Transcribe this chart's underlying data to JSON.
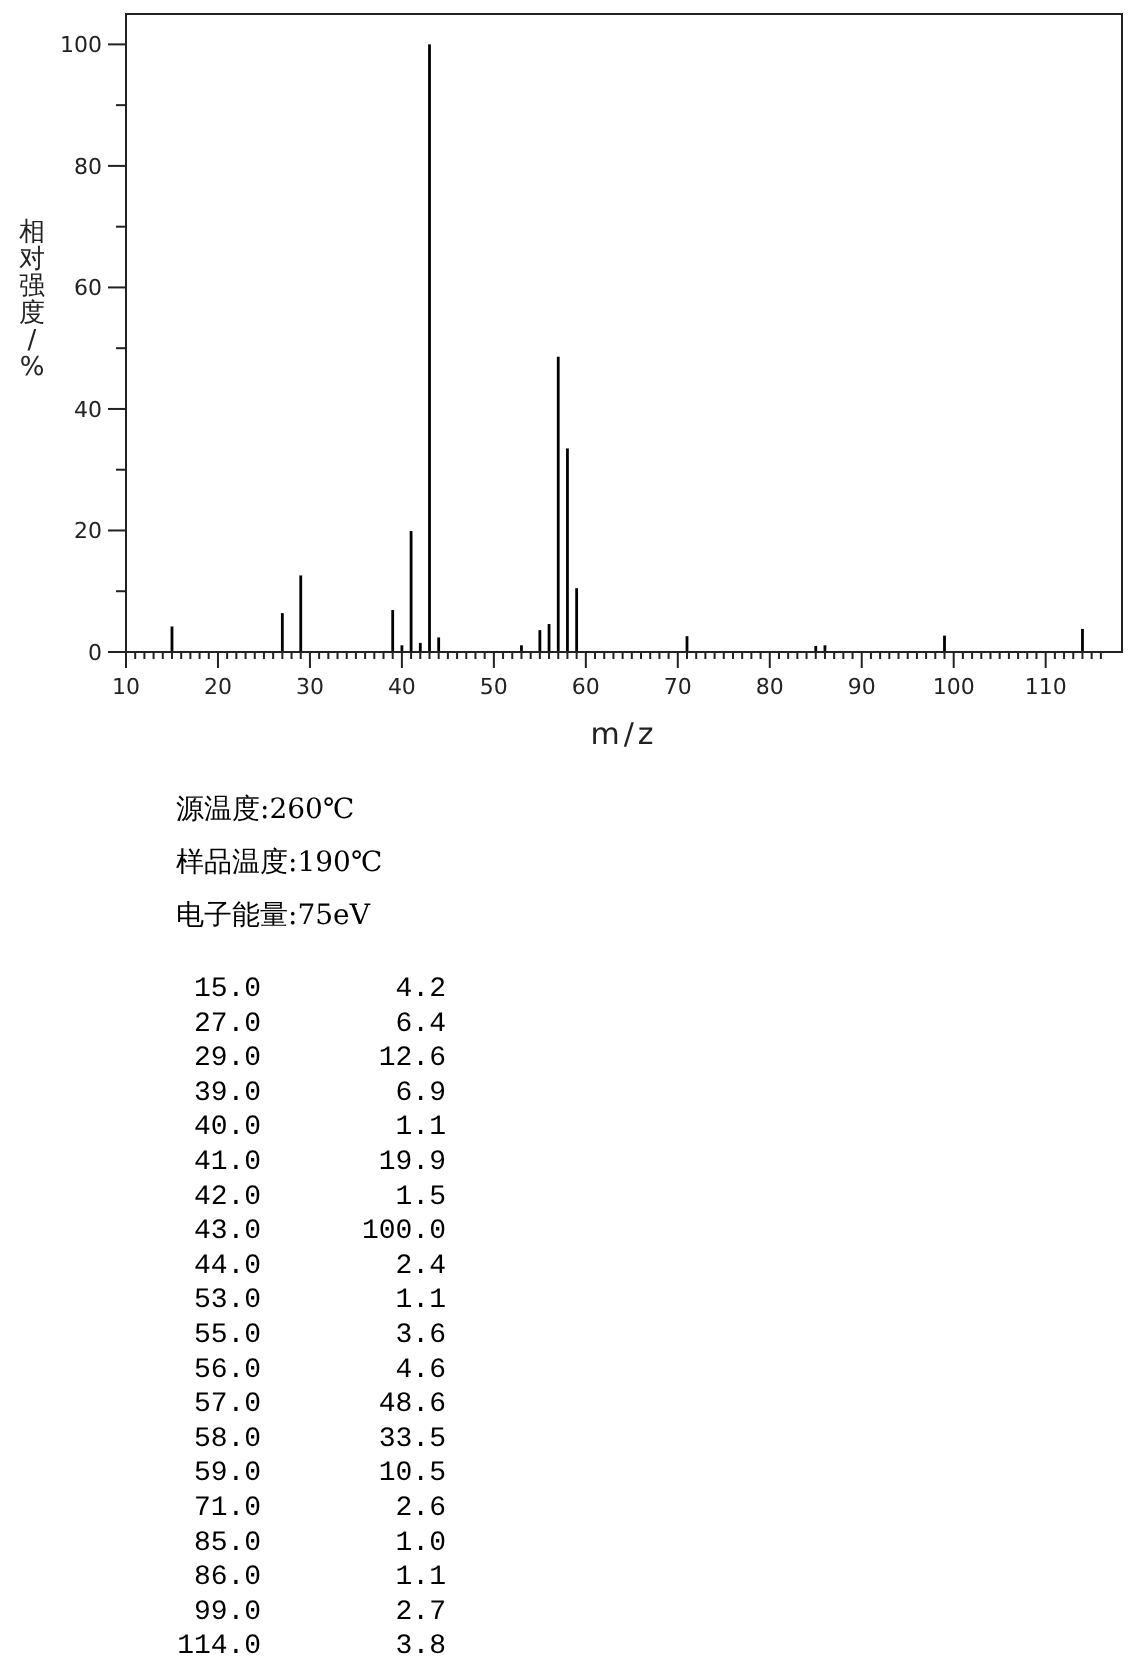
{
  "chart_data": [
    {
      "type": "bar",
      "xlabel": "m/z",
      "ylabel": "相对强度/%",
      "annotations": [
        "源温度:260℃",
        "样品温度:190℃",
        "电子能量:75eV"
      ],
      "x": [
        15,
        27,
        29,
        39,
        40,
        41,
        42,
        43,
        44,
        53,
        55,
        56,
        57,
        58,
        59,
        71,
        85,
        86,
        99,
        114
      ],
      "values": [
        4.2,
        6.4,
        12.6,
        6.9,
        1.1,
        19.9,
        1.5,
        100.0,
        2.4,
        1.1,
        3.6,
        4.6,
        48.6,
        33.5,
        10.5,
        2.6,
        1.0,
        1.1,
        2.7,
        3.8
      ],
      "color": "#000000",
      "xlim": [
        10,
        118.3
      ],
      "ylim": [
        0,
        105
      ],
      "xticks": [
        10,
        {
          "value": 11,
          "label": null
        },
        {
          "value": 12,
          "label": null
        },
        {
          "value": 13,
          "label": null
        },
        {
          "value": 14,
          "label": null
        },
        {
          "value": 15,
          "label": null
        },
        {
          "value": 16,
          "label": null
        },
        {
          "value": 17,
          "label": null
        },
        {
          "value": 18,
          "label": null
        },
        {
          "value": 19,
          "label": null
        },
        20,
        {
          "value": 21,
          "label": null
        },
        {
          "value": 22,
          "label": null
        },
        {
          "value": 23,
          "label": null
        },
        {
          "value": 24,
          "label": null
        },
        {
          "value": 25,
          "label": null
        },
        {
          "value": 26,
          "label": null
        },
        {
          "value": 27,
          "label": null
        },
        {
          "value": 28,
          "label": null
        },
        {
          "value": 29,
          "label": null
        },
        30,
        {
          "value": 31,
          "label": null
        },
        {
          "value": 32,
          "label": null
        },
        {
          "value": 33,
          "label": null
        },
        {
          "value": 34,
          "label": null
        },
        {
          "value": 35,
          "label": null
        },
        {
          "value": 36,
          "label": null
        },
        {
          "value": 37,
          "label": null
        },
        {
          "value": 38,
          "label": null
        },
        {
          "value": 39,
          "label": null
        },
        40,
        {
          "value": 41,
          "label": null
        },
        {
          "value": 42,
          "label": null
        },
        {
          "value": 43,
          "label": null
        },
        {
          "value": 44,
          "label": null
        },
        {
          "value": 45,
          "label": null
        },
        {
          "value": 46,
          "label": null
        },
        {
          "value": 47,
          "label": null
        },
        {
          "value": 48,
          "label": null
        },
        {
          "value": 49,
          "label": null
        },
        50,
        {
          "value": 51,
          "label": null
        },
        {
          "value": 52,
          "label": null
        },
        {
          "value": 53,
          "label": null
        },
        {
          "value": 54,
          "label": null
        },
        {
          "value": 55,
          "label": null
        },
        {
          "value": 56,
          "label": null
        },
        {
          "value": 57,
          "label": null
        },
        {
          "value": 58,
          "label": null
        },
        {
          "value": 59,
          "label": null
        },
        60,
        {
          "value": 61,
          "label": null
        },
        {
          "value": 62,
          "label": null
        },
        {
          "value": 63,
          "label": null
        },
        {
          "value": 64,
          "label": null
        },
        {
          "value": 65,
          "label": null
        },
        {
          "value": 66,
          "label": null
        },
        {
          "value": 67,
          "label": null
        },
        {
          "value": 68,
          "label": null
        },
        {
          "value": 69,
          "label": null
        },
        70,
        {
          "value": 71,
          "label": null
        },
        {
          "value": 72,
          "label": null
        },
        {
          "value": 73,
          "label": null
        },
        {
          "value": 74,
          "label": null
        },
        {
          "value": 75,
          "label": null
        },
        {
          "value": 76,
          "label": null
        },
        {
          "value": 77,
          "label": null
        },
        {
          "value": 78,
          "label": null
        },
        {
          "value": 79,
          "label": null
        },
        80,
        {
          "value": 81,
          "label": null
        },
        {
          "value": 82,
          "label": null
        },
        {
          "value": 83,
          "label": null
        },
        {
          "value": 84,
          "label": null
        },
        {
          "value": 85,
          "label": null
        },
        {
          "value": 86,
          "label": null
        },
        {
          "value": 87,
          "label": null
        },
        {
          "value": 88,
          "label": null
        },
        {
          "value": 89,
          "label": null
        },
        90,
        {
          "value": 91,
          "label": null
        },
        {
          "value": 92,
          "label": null
        },
        {
          "value": 93,
          "label": null
        },
        {
          "value": 94,
          "label": null
        },
        {
          "value": 95,
          "label": null
        },
        {
          "value": 96,
          "label": null
        },
        {
          "value": 97,
          "label": null
        },
        {
          "value": 98,
          "label": null
        },
        {
          "value": 99,
          "label": null
        },
        100,
        {
          "value": 101,
          "label": null
        },
        {
          "value": 102,
          "label": null
        },
        {
          "value": 103,
          "label": null
        },
        {
          "value": 104,
          "label": null
        },
        {
          "value": 105,
          "label": null
        },
        {
          "value": 106,
          "label": null
        },
        {
          "value": 107,
          "label": null
        },
        {
          "value": 108,
          "label": null
        },
        {
          "value": 109,
          "label": null
        },
        110,
        {
          "value": 111,
          "label": null
        },
        {
          "value": 112,
          "label": null
        },
        {
          "value": 113,
          "label": null
        },
        {
          "value": 114,
          "label": null
        },
        {
          "value": 115,
          "label": null
        },
        {
          "value": 116,
          "label": null
        }
      ],
      "yticks": [
        0,
        {
          "value": 10,
          "label": null
        },
        20,
        {
          "value": 30,
          "label": null
        },
        40,
        {
          "value": 50,
          "label": null
        },
        60,
        {
          "value": 70,
          "label": null
        },
        80,
        {
          "value": 90,
          "label": null
        },
        100
      ]
    },
    {
      "type": "other",
      "annotations": [
        "15.0        4.2",
        "27.0        6.4",
        "29.0       12.6",
        "39.0        6.9",
        "40.0        1.1",
        "41.0       19.9",
        "42.0        1.5",
        "43.0      100.0",
        "44.0        2.4",
        "53.0        1.1",
        "55.0        3.6",
        "56.0        4.6",
        "57.0       48.6",
        "58.0       33.5",
        "59.0       10.5",
        "71.0        2.6",
        "85.0        1.0",
        "86.0        1.1",
        "99.0        2.7",
        "114.0        3.8"
      ]
    }
  ]
}
